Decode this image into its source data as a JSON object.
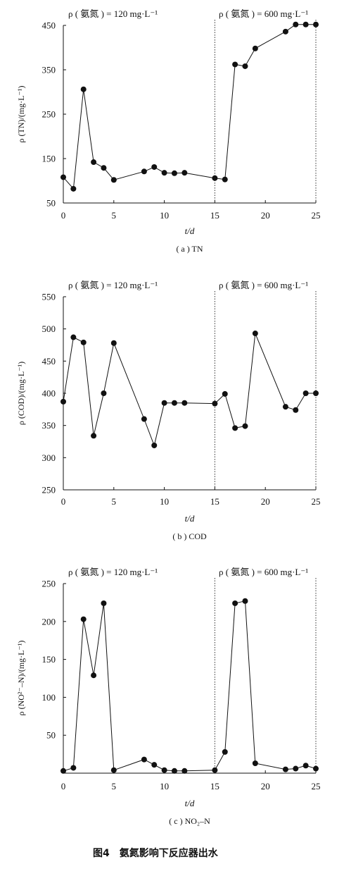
{
  "figure_caption": "图4　氨氮影响下反应器出水",
  "chart_data": [
    {
      "type": "line",
      "subtitle": "( a ) TN",
      "xlabel": "t/d",
      "ylabel": "ρ (TN)/(mg·L⁻¹)",
      "xlim": [
        0,
        25
      ],
      "ylim": [
        50,
        450
      ],
      "xticks": [
        0,
        5,
        10,
        15,
        20,
        25
      ],
      "yticks": [
        50,
        150,
        250,
        350,
        450
      ],
      "phase_labels": [
        "ρ ( 氨氮 ) = 120 mg·L⁻¹",
        "ρ ( 氨氮 ) = 600 mg·L⁻¹"
      ],
      "phase_boundaries": [
        15,
        25
      ],
      "grid": false,
      "series": [
        {
          "x": [
            0,
            1,
            2,
            3,
            4,
            5,
            8,
            9,
            10,
            11,
            12,
            15,
            16,
            17,
            18,
            19,
            22,
            23,
            24,
            25
          ],
          "y": [
            108,
            82,
            306,
            142,
            129,
            102,
            121,
            131,
            118,
            117,
            118,
            106,
            103,
            362,
            358,
            398,
            436,
            452,
            452,
            452
          ]
        }
      ]
    },
    {
      "type": "line",
      "subtitle": "( b ) COD",
      "xlabel": "t/d",
      "ylabel": "ρ (COD)/(mg·L⁻¹)",
      "xlim": [
        0,
        25
      ],
      "ylim": [
        250,
        550
      ],
      "xticks": [
        0,
        5,
        10,
        15,
        20,
        25
      ],
      "yticks": [
        250,
        300,
        350,
        400,
        450,
        500,
        550
      ],
      "phase_labels": [
        "ρ ( 氨氮 ) = 120 mg·L⁻¹",
        "ρ ( 氨氮 ) = 600 mg·L⁻¹"
      ],
      "phase_boundaries": [
        15,
        25
      ],
      "grid": false,
      "series": [
        {
          "x": [
            0,
            1,
            2,
            3,
            4,
            5,
            8,
            9,
            10,
            11,
            12,
            15,
            16,
            17,
            18,
            19,
            22,
            23,
            24,
            25
          ],
          "y": [
            387,
            487,
            479,
            334,
            400,
            478,
            360,
            319,
            385,
            385,
            385,
            384,
            399,
            346,
            349,
            493,
            379,
            374,
            400,
            400
          ]
        }
      ]
    },
    {
      "type": "line",
      "subtitle": "( c ) NO₂–N",
      "xlabel": "t/d",
      "ylabel": "ρ (NO²⁻–N)/(mg·L⁻¹)",
      "xlim": [
        0,
        25
      ],
      "ylim": [
        0,
        250
      ],
      "xticks": [
        0,
        5,
        10,
        15,
        20,
        25
      ],
      "yticks": [
        50,
        100,
        150,
        200,
        250
      ],
      "phase_labels": [
        "ρ ( 氨氮 ) = 120 mg·L⁻¹",
        "ρ ( 氨氮 ) = 600 mg·L⁻¹"
      ],
      "phase_boundaries": [
        15,
        25
      ],
      "grid": false,
      "series": [
        {
          "x": [
            0,
            1,
            2,
            3,
            4,
            5,
            8,
            9,
            10,
            11,
            12,
            15,
            16,
            17,
            18,
            19,
            22,
            23,
            24,
            25
          ],
          "y": [
            3,
            7,
            203,
            129,
            224,
            4,
            18,
            11,
            4,
            3,
            3,
            4,
            28,
            224,
            227,
            13,
            5,
            6,
            10,
            6
          ]
        }
      ]
    }
  ]
}
